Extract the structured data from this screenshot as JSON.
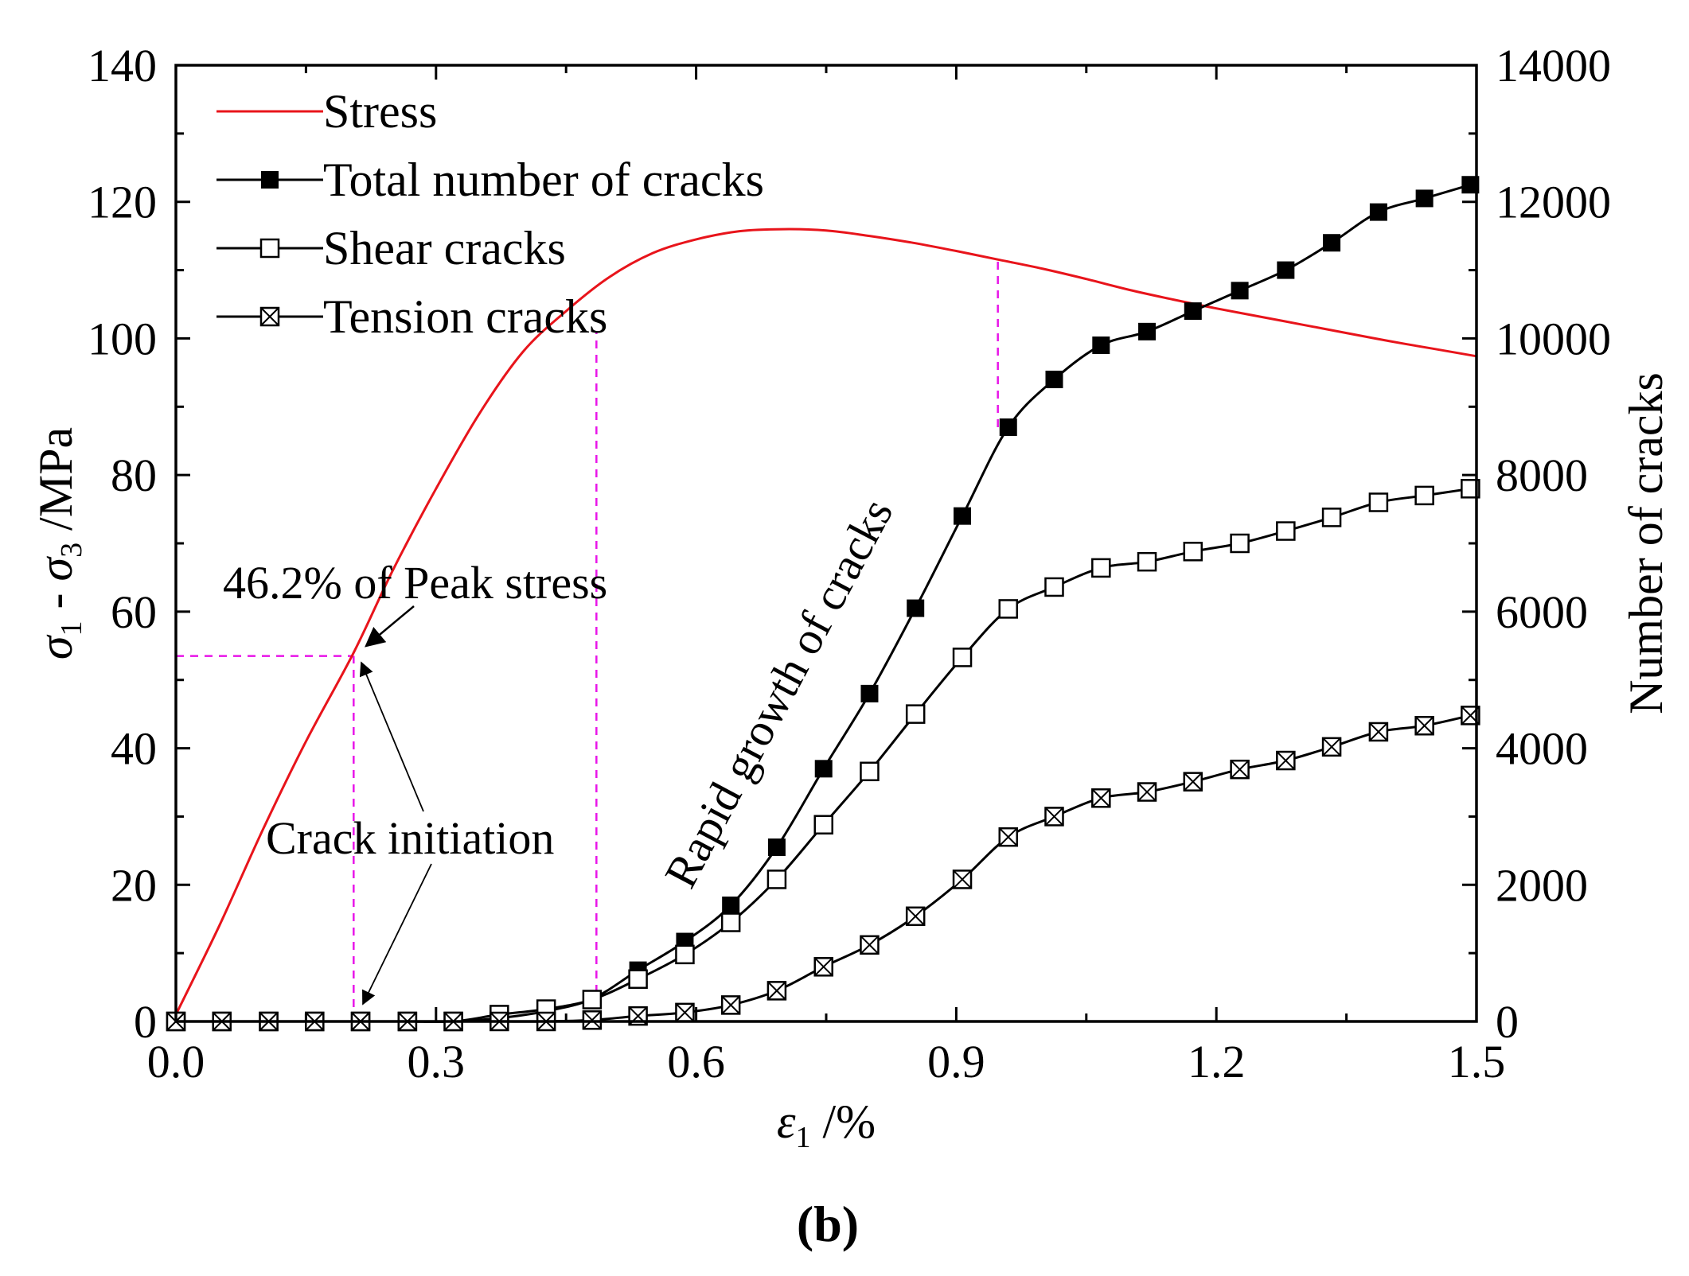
{
  "chart_data": {
    "type": "line",
    "panel_label": "(b)",
    "x_axis": {
      "symbol": "ε",
      "subscript": "1",
      "unit": " /%",
      "range": [
        0,
        1.5
      ],
      "ticks": [
        0.0,
        0.3,
        0.6,
        0.9,
        1.2,
        1.5
      ],
      "tick_labels": [
        "0.0",
        "0.3",
        "0.6",
        "0.9",
        "1.2",
        "1.5"
      ]
    },
    "y_left": {
      "symbol_a": "σ",
      "sub_a": "1",
      "minus": " - ",
      "symbol_b": "σ",
      "sub_b": "3",
      "unit": " /MPa",
      "range": [
        0,
        140
      ],
      "ticks": [
        0,
        20,
        40,
        60,
        80,
        100,
        120,
        140
      ],
      "tick_labels": [
        "0",
        "20",
        "40",
        "60",
        "80",
        "100",
        "120",
        "140"
      ]
    },
    "y_right": {
      "label": "Number of cracks",
      "range": [
        0,
        14000
      ],
      "ticks": [
        0,
        2000,
        4000,
        6000,
        8000,
        10000,
        12000,
        14000
      ],
      "tick_labels": [
        "0",
        "2000",
        "4000",
        "6000",
        "8000",
        "10000",
        "12000",
        "14000"
      ]
    },
    "colors": {
      "stress": "#e8141b",
      "cracks": "#000000",
      "guide": "#e815e8"
    },
    "series": [
      {
        "name": "Stress",
        "axis": "left",
        "marker": "none",
        "x": [
          0.0,
          0.05,
          0.1,
          0.15,
          0.205,
          0.25,
          0.3,
          0.35,
          0.4,
          0.45,
          0.5,
          0.55,
          0.6,
          0.65,
          0.7,
          0.75,
          0.8,
          0.85,
          0.9,
          0.95,
          1.0,
          1.05,
          1.1,
          1.15,
          1.2,
          1.25,
          1.3,
          1.35,
          1.4,
          1.45,
          1.5
        ],
        "y": [
          1,
          14,
          28,
          41,
          54,
          66,
          78,
          89,
          98,
          104,
          109,
          112.5,
          114.5,
          115.7,
          116,
          115.8,
          115,
          114,
          112.8,
          111.5,
          110.2,
          108.7,
          107.1,
          105.7,
          104.4,
          103.2,
          102,
          100.8,
          99.6,
          98.5,
          97.4
        ]
      },
      {
        "name": "Total number of cracks",
        "axis": "right",
        "marker": "filled-square",
        "x": [
          0.0,
          0.053,
          0.107,
          0.16,
          0.213,
          0.267,
          0.32,
          0.373,
          0.427,
          0.48,
          0.533,
          0.587,
          0.64,
          0.693,
          0.747,
          0.8,
          0.853,
          0.907,
          0.96,
          1.013,
          1.067,
          1.12,
          1.173,
          1.227,
          1.28,
          1.333,
          1.387,
          1.44,
          1.493
        ],
        "y": [
          0,
          0,
          0,
          0,
          0,
          0,
          0,
          50,
          150,
          330,
          750,
          1170,
          1700,
          2550,
          3700,
          4800,
          6050,
          7400,
          8700,
          9400,
          9900,
          10100,
          10400,
          10700,
          11000,
          11400,
          11850,
          12050,
          12250
        ]
      },
      {
        "name": "Shear cracks",
        "axis": "right",
        "marker": "open-square",
        "x": [
          0.0,
          0.053,
          0.107,
          0.16,
          0.213,
          0.267,
          0.32,
          0.373,
          0.427,
          0.48,
          0.533,
          0.587,
          0.64,
          0.693,
          0.747,
          0.8,
          0.853,
          0.907,
          0.96,
          1.013,
          1.067,
          1.12,
          1.173,
          1.227,
          1.28,
          1.333,
          1.387,
          1.44,
          1.493
        ],
        "y": [
          0,
          0,
          0,
          0,
          0,
          0,
          0,
          100,
          180,
          320,
          620,
          980,
          1450,
          2080,
          2880,
          3660,
          4500,
          5330,
          6040,
          6360,
          6640,
          6730,
          6880,
          7000,
          7180,
          7380,
          7600,
          7700,
          7800
        ]
      },
      {
        "name": "Tension cracks",
        "axis": "right",
        "marker": "crossed-square",
        "x": [
          0.0,
          0.053,
          0.107,
          0.16,
          0.213,
          0.267,
          0.32,
          0.373,
          0.427,
          0.48,
          0.533,
          0.587,
          0.64,
          0.693,
          0.747,
          0.8,
          0.853,
          0.907,
          0.96,
          1.013,
          1.067,
          1.12,
          1.173,
          1.227,
          1.28,
          1.333,
          1.387,
          1.44,
          1.493
        ],
        "y": [
          0,
          0,
          0,
          0,
          0,
          0,
          0,
          0,
          0,
          20,
          80,
          130,
          240,
          450,
          800,
          1120,
          1540,
          2080,
          2700,
          3000,
          3270,
          3360,
          3510,
          3690,
          3820,
          4020,
          4240,
          4330,
          4480
        ]
      }
    ],
    "guides": [
      {
        "type": "h",
        "y": 53.5,
        "from_x": 0,
        "to_x": 0.205
      },
      {
        "type": "v",
        "x": 0.205,
        "from_y": 0,
        "to_y": 53.5
      },
      {
        "type": "v",
        "x": 0.485,
        "from_y": 0,
        "to_y": 101
      },
      {
        "type": "v",
        "x": 0.948,
        "from_y": 87,
        "to_y": 111.5
      }
    ],
    "annotations": {
      "peak_text": "46.2% of Peak stress",
      "crack_init_text": "Crack initiation",
      "rapid_text": "Rapid growth of cracks"
    }
  }
}
